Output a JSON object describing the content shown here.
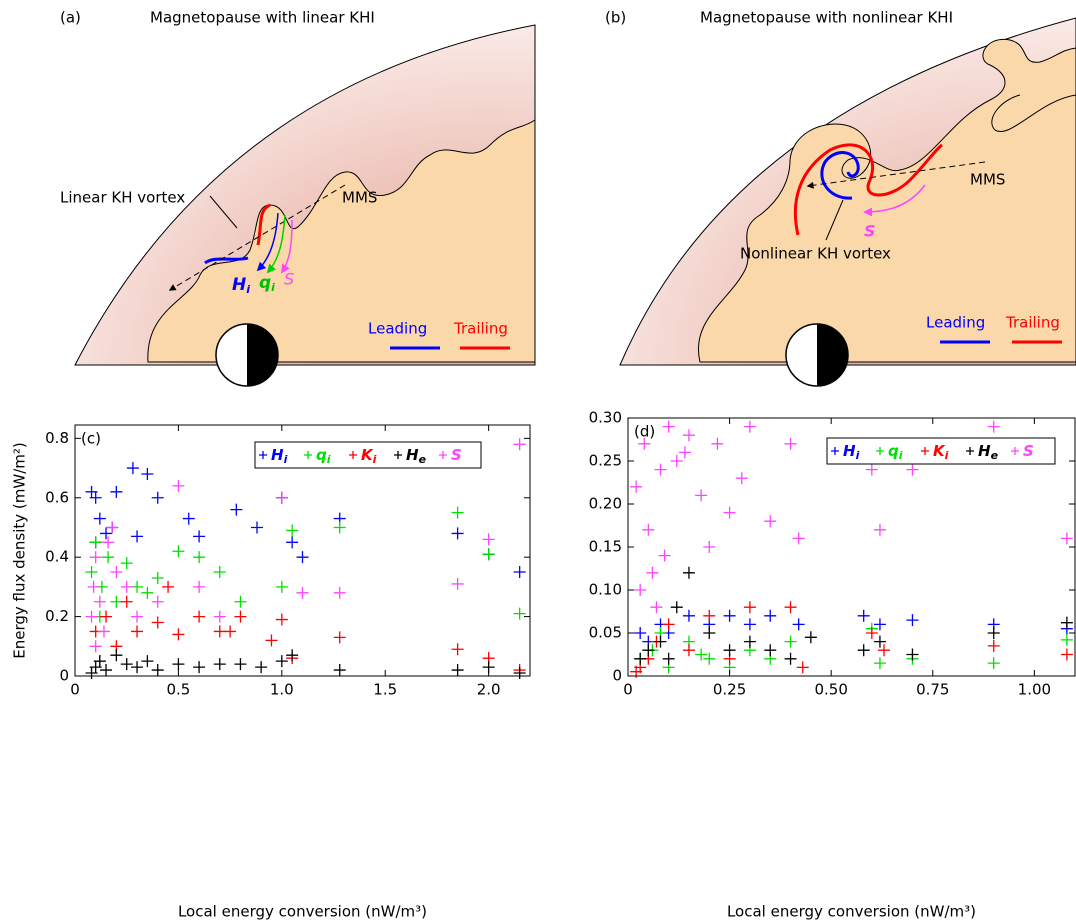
{
  "diagrams": [
    {
      "panel": "(a)",
      "title": "Magnetopause with linear KHI",
      "vortex": "Linear KH vortex",
      "spacecraft": "MMS",
      "arrows": [
        {
          "name": "H",
          "subscript": "i"
        },
        {
          "name": "q",
          "subscript": "i"
        },
        {
          "name": "S"
        }
      ],
      "leading": "Leading",
      "trailing": "Trailing"
    },
    {
      "panel": "(b)",
      "title": "Magnetopause with nonlinear KHI",
      "vortex": "Nonlinear KH vortex",
      "spacecraft": "MMS",
      "arrows": [
        {
          "name": "S"
        }
      ],
      "leading": "Leading",
      "trailing": "Trailing"
    }
  ],
  "chart_data": [
    {
      "type": "scatter",
      "panel": "(c)",
      "xlabel": "Local energy conversion (nW/m³)",
      "ylabel": "Energy flux density (mW/m²)",
      "xlim": [
        0,
        2.2
      ],
      "xticks": [
        0,
        0.5,
        {
          "value": 1,
          "label": "1.0"
        },
        1.5,
        {
          "value": 2,
          "label": "2.0"
        }
      ],
      "ylim": [
        0,
        0.845
      ],
      "yticks": [
        0,
        0.2,
        0.4,
        0.6,
        0.8
      ],
      "series": [
        {
          "name": "H",
          "subscript": "i",
          "color": "#0000ff",
          "x": [
            0.08,
            0.1,
            0.12,
            0.15,
            0.2,
            0.28,
            0.35,
            0.4,
            0.55,
            0.6,
            0.78,
            0.88,
            1.0,
            1.05,
            1.1,
            1.28,
            1.85,
            2.0,
            2.15,
            0.1,
            0.18,
            0.3
          ],
          "y": [
            0.62,
            0.6,
            0.53,
            0.48,
            0.62,
            0.7,
            0.68,
            0.6,
            0.53,
            0.47,
            0.56,
            0.5,
            0.6,
            0.45,
            0.4,
            0.53,
            0.48,
            0.41,
            0.35,
            0.45,
            0.5,
            0.47
          ]
        },
        {
          "name": "q",
          "subscript": "i",
          "color": "#00e000",
          "x": [
            0.08,
            0.1,
            0.13,
            0.16,
            0.2,
            0.25,
            0.3,
            0.4,
            0.5,
            0.6,
            0.7,
            0.8,
            1.0,
            1.05,
            1.28,
            1.85,
            2.0,
            2.15,
            0.12,
            0.35
          ],
          "y": [
            0.35,
            0.45,
            0.3,
            0.4,
            0.25,
            0.38,
            0.3,
            0.33,
            0.42,
            0.4,
            0.35,
            0.25,
            0.3,
            0.49,
            0.5,
            0.55,
            0.41,
            0.21,
            0.2,
            0.28
          ]
        },
        {
          "name": "K",
          "subscript": "i",
          "color": "#ff0000",
          "x": [
            0.1,
            0.15,
            0.2,
            0.25,
            0.3,
            0.4,
            0.5,
            0.6,
            0.7,
            0.8,
            0.95,
            1.0,
            1.05,
            1.28,
            1.85,
            2.0,
            2.15,
            0.12,
            0.45,
            0.75
          ],
          "y": [
            0.15,
            0.2,
            0.1,
            0.25,
            0.15,
            0.18,
            0.14,
            0.2,
            0.15,
            0.2,
            0.12,
            0.19,
            0.06,
            0.13,
            0.09,
            0.06,
            0.02,
            0.05,
            0.3,
            0.15
          ]
        },
        {
          "name": "H",
          "subscript": "e",
          "color": "#000000",
          "x": [
            0.08,
            0.1,
            0.12,
            0.15,
            0.2,
            0.25,
            0.3,
            0.35,
            0.4,
            0.5,
            0.6,
            0.7,
            0.8,
            0.9,
            1.0,
            1.05,
            1.28,
            1.85,
            2.0,
            2.15
          ],
          "y": [
            0.01,
            0.03,
            0.05,
            0.02,
            0.07,
            0.04,
            0.03,
            0.05,
            0.02,
            0.04,
            0.03,
            0.04,
            0.04,
            0.03,
            0.05,
            0.07,
            0.02,
            0.02,
            0.03,
            0.01
          ]
        },
        {
          "name": "S",
          "color": "#ff44ff",
          "x": [
            0.08,
            0.09,
            0.1,
            0.12,
            0.14,
            0.16,
            0.2,
            0.25,
            0.3,
            0.4,
            0.5,
            0.6,
            0.7,
            1.0,
            1.1,
            1.28,
            1.85,
            2.0,
            2.15,
            0.1,
            0.18
          ],
          "y": [
            0.2,
            0.3,
            0.4,
            0.25,
            0.15,
            0.45,
            0.35,
            0.3,
            0.2,
            0.25,
            0.64,
            0.3,
            0.2,
            0.6,
            0.28,
            0.28,
            0.31,
            0.46,
            0.78,
            0.1,
            0.5
          ]
        }
      ]
    },
    {
      "type": "scatter",
      "panel": "(d)",
      "xlabel": "Local energy conversion (nW/m³)",
      "xlim": [
        0,
        1.1
      ],
      "xticks": [
        0,
        0.25,
        {
          "value": 0.5,
          "label": "0.50"
        },
        0.75,
        {
          "value": 1,
          "label": "1.00"
        }
      ],
      "ylim": [
        0,
        0.3
      ],
      "yticks": [
        0,
        0.05,
        {
          "value": 0.1,
          "label": "0.10"
        },
        0.15,
        {
          "value": 0.2,
          "label": "0.20"
        },
        0.25,
        {
          "value": 0.3,
          "label": "0.30"
        }
      ],
      "series": [
        {
          "name": "H",
          "subscript": "i",
          "color": "#0000ff",
          "x": [
            0.03,
            0.05,
            0.08,
            0.1,
            0.15,
            0.2,
            0.25,
            0.3,
            0.35,
            0.42,
            0.58,
            0.62,
            0.7,
            0.9,
            1.08
          ],
          "y": [
            0.05,
            0.04,
            0.06,
            0.05,
            0.07,
            0.06,
            0.07,
            0.06,
            0.07,
            0.06,
            0.07,
            0.06,
            0.065,
            0.06,
            0.055
          ]
        },
        {
          "name": "q",
          "subscript": "i",
          "color": "#00e000",
          "x": [
            0.03,
            0.06,
            0.1,
            0.15,
            0.2,
            0.25,
            0.3,
            0.35,
            0.4,
            0.6,
            0.62,
            0.7,
            0.9,
            1.08,
            0.08,
            0.18
          ],
          "y": [
            0.02,
            0.03,
            0.01,
            0.04,
            0.02,
            0.01,
            0.03,
            0.02,
            0.04,
            0.055,
            0.015,
            0.02,
            0.015,
            0.042,
            0.05,
            0.025
          ]
        },
        {
          "name": "K",
          "subscript": "i",
          "color": "#ff0000",
          "x": [
            0.03,
            0.05,
            0.07,
            0.1,
            0.15,
            0.2,
            0.3,
            0.4,
            0.43,
            0.6,
            0.63,
            0.9,
            1.08,
            0.25,
            0.02
          ],
          "y": [
            0.01,
            0.02,
            0.04,
            0.06,
            0.03,
            0.07,
            0.08,
            0.08,
            0.01,
            0.05,
            0.03,
            0.035,
            0.025,
            0.02,
            0.005
          ]
        },
        {
          "name": "H",
          "subscript": "e",
          "color": "#000000",
          "x": [
            0.03,
            0.05,
            0.08,
            0.1,
            0.15,
            0.2,
            0.25,
            0.3,
            0.4,
            0.45,
            0.58,
            0.62,
            0.7,
            0.9,
            1.08,
            0.12,
            0.35
          ],
          "y": [
            0.02,
            0.03,
            0.04,
            0.02,
            0.12,
            0.05,
            0.03,
            0.04,
            0.02,
            0.045,
            0.03,
            0.04,
            0.025,
            0.05,
            0.062,
            0.08,
            0.03
          ]
        },
        {
          "name": "S",
          "color": "#ff44ff",
          "x": [
            0.02,
            0.04,
            0.05,
            0.06,
            0.08,
            0.1,
            0.12,
            0.15,
            0.18,
            0.2,
            0.22,
            0.25,
            0.28,
            0.3,
            0.35,
            0.4,
            0.42,
            0.6,
            0.62,
            0.7,
            0.9,
            1.08,
            0.03,
            0.07,
            0.09,
            0.14
          ],
          "y": [
            0.22,
            0.27,
            0.17,
            0.12,
            0.24,
            0.29,
            0.25,
            0.28,
            0.21,
            0.15,
            0.27,
            0.19,
            0.23,
            0.29,
            0.18,
            0.27,
            0.16,
            0.24,
            0.17,
            0.24,
            0.29,
            0.16,
            0.1,
            0.08,
            0.14,
            0.26
          ]
        }
      ]
    }
  ]
}
